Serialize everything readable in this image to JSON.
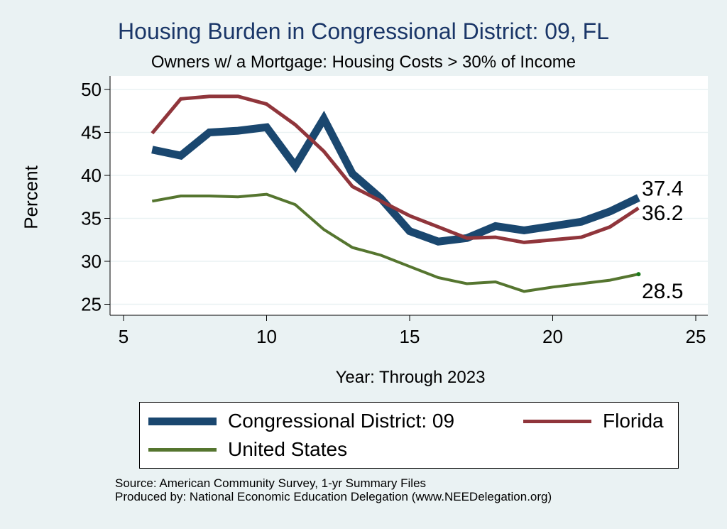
{
  "header": {
    "title": "Housing Burden in Congressional District:  09, FL",
    "subtitle": "Owners w/ a Mortgage: Housing Costs > 30% of Income"
  },
  "footer": {
    "source": "Source: American Community Survey, 1-yr Summary Files",
    "producer": "Produced by: National Economic Education Delegation (www.NEEDelegation.org)"
  },
  "chart_data": {
    "type": "line",
    "title": "Housing Burden in Congressional District:  09, FL",
    "subtitle": "Owners w/ a Mortgage: Housing Costs > 30% of Income",
    "xlabel": "Year: Through 2023",
    "ylabel": "Percent",
    "xlim": [
      5,
      25
    ],
    "ylim": [
      25,
      50
    ],
    "xticks": [
      "5",
      "10",
      "15",
      "20",
      "25"
    ],
    "yticks": [
      "25",
      "30",
      "35",
      "40",
      "45",
      "50"
    ],
    "grid": true,
    "legend_position": "bottom",
    "x": [
      6,
      7,
      8,
      9,
      10,
      11,
      12,
      13,
      14,
      15,
      16,
      17,
      18,
      19,
      20,
      21,
      22,
      23
    ],
    "series": [
      {
        "name": "Congressional District:  09",
        "color": "#1a476f",
        "values": [
          43.0,
          42.3,
          45.0,
          45.2,
          45.6,
          41.1,
          46.6,
          40.2,
          37.3,
          33.5,
          32.3,
          32.7,
          34.1,
          33.6,
          34.1,
          34.6,
          35.8,
          37.4
        ],
        "end_label": "37.4"
      },
      {
        "name": "Florida",
        "color": "#90353b",
        "values": [
          44.9,
          48.9,
          49.2,
          49.2,
          48.3,
          45.9,
          42.8,
          38.7,
          37.0,
          35.3,
          34.0,
          32.7,
          32.8,
          32.2,
          32.5,
          32.8,
          34.0,
          36.2
        ],
        "end_label": "36.2"
      },
      {
        "name": "United States",
        "color": "#55752f",
        "values": [
          37.0,
          37.6,
          37.6,
          37.5,
          37.8,
          36.6,
          33.7,
          31.6,
          30.7,
          29.4,
          28.1,
          27.4,
          27.6,
          26.5,
          27.0,
          27.4,
          27.8,
          28.5
        ],
        "end_label": "28.5"
      }
    ]
  }
}
